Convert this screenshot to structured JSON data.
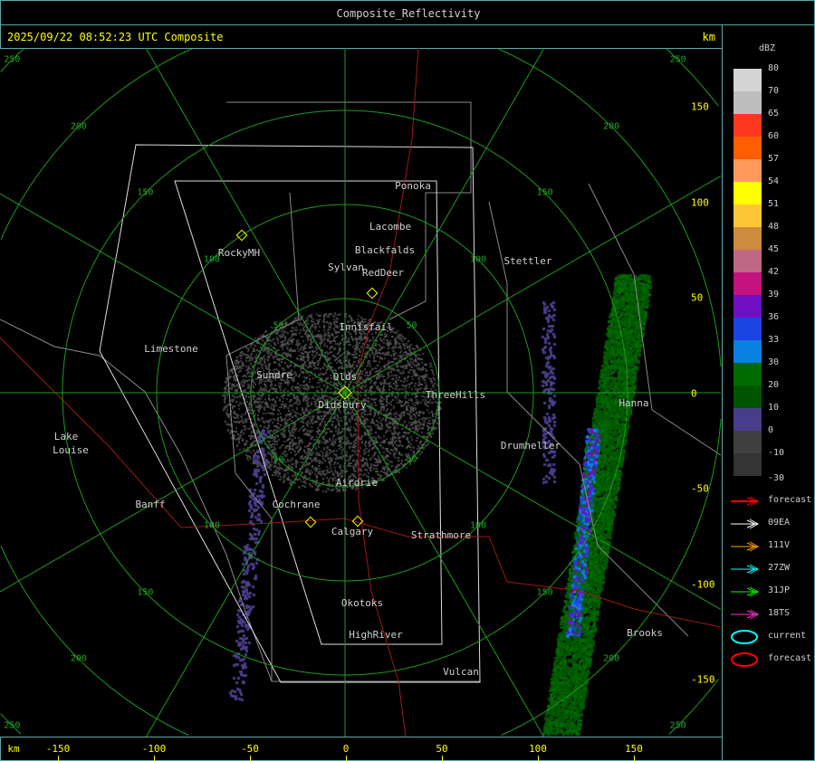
{
  "title": "Composite_Reflectivity",
  "header": {
    "timestamp": "2025/09/22 08:52:23 UTC Composite",
    "unit": "km"
  },
  "x_axis": {
    "unit": "km",
    "ticks": [
      "-150",
      "-100",
      "-50",
      "0",
      "50",
      "100",
      "150"
    ]
  },
  "y_axis": {
    "ticks": [
      "150",
      "100",
      "50",
      "0",
      "-50",
      "-100",
      "-150"
    ]
  },
  "range_rings": [
    "50",
    "100",
    "150",
    "200",
    "250"
  ],
  "cities": [
    "Ponoka",
    "Lacombe",
    "Blackfalds",
    "Sylvan",
    "RedDeer",
    "Stettler",
    "RockyMH",
    "Innisfail",
    "Limestone",
    "Sundre",
    "Olds",
    "Didsbury",
    "ThreeHills",
    "Hanna",
    "Lake",
    "Louise",
    "Drumheller",
    "Airdrie",
    "Banff",
    "Cochrane",
    "Calgary",
    "Strathmore",
    "Okotoks",
    "HighRiver",
    "Brooks",
    "Vulcan"
  ],
  "legend": {
    "unit": "dBZ",
    "scale": [
      {
        "label": "80",
        "color": "#d4d4d4"
      },
      {
        "label": "70",
        "color": "#bdbdbd"
      },
      {
        "label": "65",
        "color": "#ff3620"
      },
      {
        "label": "60",
        "color": "#ff5d00"
      },
      {
        "label": "57",
        "color": "#ff9a5a"
      },
      {
        "label": "54",
        "color": "#ffff00"
      },
      {
        "label": "51",
        "color": "#fdc637"
      },
      {
        "label": "48",
        "color": "#ce8a3f"
      },
      {
        "label": "45",
        "color": "#be6885"
      },
      {
        "label": "42",
        "color": "#c4127f"
      },
      {
        "label": "39",
        "color": "#700fc4"
      },
      {
        "label": "36",
        "color": "#1c44e4"
      },
      {
        "label": "33",
        "color": "#0a80e0"
      },
      {
        "label": "30",
        "color": "#006b00"
      },
      {
        "label": "20",
        "color": "#005600"
      },
      {
        "label": "10",
        "color": "#483d8b"
      },
      {
        "label": "0",
        "color": "#404040"
      },
      {
        "label": "-10",
        "color": "#343434"
      }
    ],
    "bottom_label": "-30",
    "tracks": [
      {
        "label": "forecast",
        "color": "#ff0000",
        "type": "arrow"
      },
      {
        "label": "09EA",
        "color": "#ffffff",
        "type": "arrow"
      },
      {
        "label": "111V",
        "color": "#ffa500",
        "type": "arrow"
      },
      {
        "label": "27ZW",
        "color": "#00ffff",
        "type": "arrow"
      },
      {
        "label": "31JP",
        "color": "#00ff00",
        "type": "arrow"
      },
      {
        "label": "18TS",
        "color": "#ff33cc",
        "type": "arrow"
      },
      {
        "label": "current",
        "color": "#00ffff",
        "type": "ellipse"
      },
      {
        "label": "forecast",
        "color": "#ff0000",
        "type": "ellipse"
      }
    ]
  }
}
